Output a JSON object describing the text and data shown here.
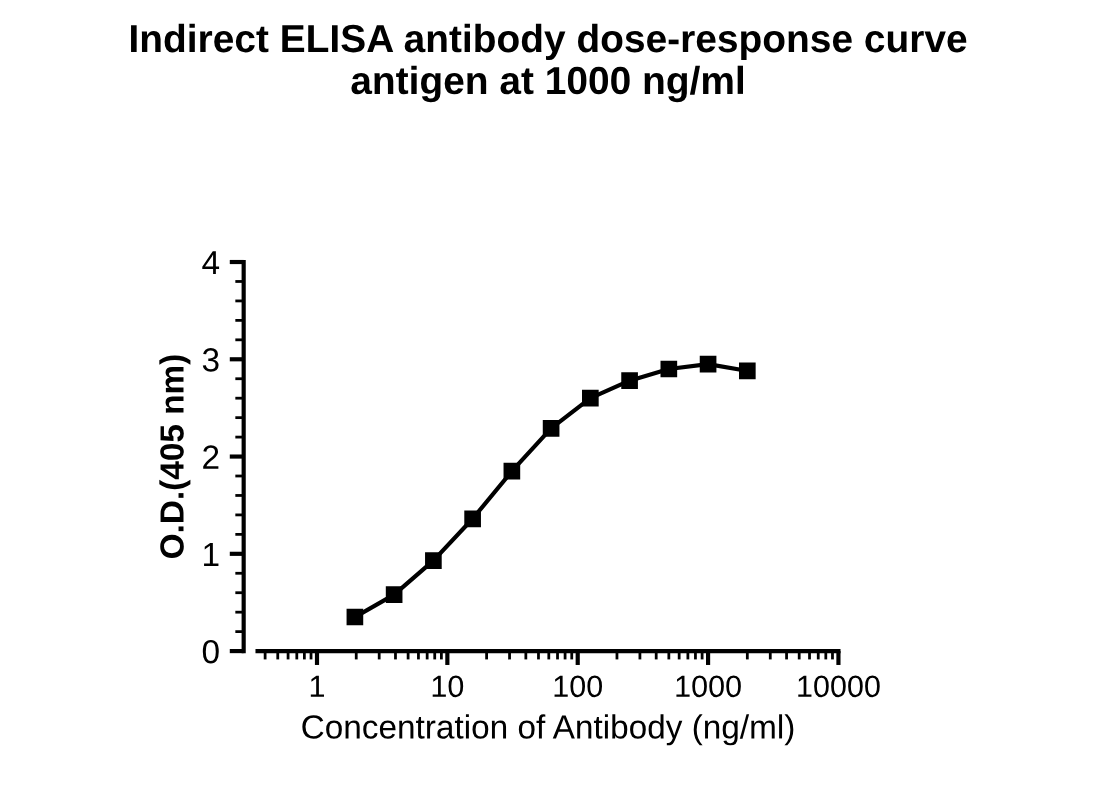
{
  "chart_data": {
    "type": "line",
    "title": "Indirect ELISA antibody dose-response curve\nantigen at 1000 ng/ml",
    "xlabel": "Concentration of Antibody (ng/ml)",
    "ylabel": "O.D.(405 nm)",
    "x": [
      1.953,
      3.906,
      7.8125,
      15.625,
      31.25,
      62.5,
      125,
      250,
      500,
      1000,
      2000
    ],
    "series": [
      {
        "color": "#000000",
        "values": [
          0.35,
          0.58,
          0.93,
          1.36,
          1.85,
          2.29,
          2.6,
          2.78,
          2.9,
          2.95,
          2.88
        ]
      }
    ],
    "log": "x",
    "xlim": [
      0.35,
      10000
    ],
    "xticks": [
      1,
      10,
      100,
      1000,
      10000
    ],
    "ylim": [
      0,
      4
    ],
    "yticks": [
      0,
      1,
      2,
      3,
      4
    ],
    "grid": false,
    "legend": false,
    "marker": "square",
    "line_style": "solid"
  }
}
